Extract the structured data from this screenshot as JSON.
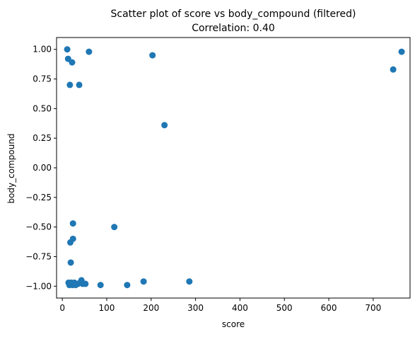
{
  "chart_data": {
    "type": "scatter",
    "title": "Scatter plot of score vs body_compound (filtered)",
    "subtitle": "Correlation: 0.40",
    "xlabel": "score",
    "ylabel": "body_compound",
    "xlim": [
      -13,
      783
    ],
    "ylim": [
      -1.1,
      1.1
    ],
    "xticks": [
      0,
      100,
      200,
      300,
      400,
      500,
      600,
      700
    ],
    "yticks": [
      -1.0,
      -0.75,
      -0.5,
      -0.25,
      0.0,
      0.25,
      0.5,
      0.75,
      1.0
    ],
    "xtick_labels": [
      "0",
      "100",
      "200",
      "300",
      "400",
      "500",
      "600",
      "700"
    ],
    "ytick_labels": [
      "−1.00",
      "−0.75",
      "−0.50",
      "−0.25",
      "0.00",
      "0.25",
      "0.50",
      "0.75",
      "1.00"
    ],
    "grid": false,
    "marker_color": "#1f77b4",
    "points": [
      {
        "x": 11,
        "y": 1.0
      },
      {
        "x": 13,
        "y": 0.92
      },
      {
        "x": 22,
        "y": 0.89
      },
      {
        "x": 17,
        "y": 0.7
      },
      {
        "x": 38,
        "y": 0.7
      },
      {
        "x": 60,
        "y": 0.98
      },
      {
        "x": 203,
        "y": 0.95
      },
      {
        "x": 230,
        "y": 0.36
      },
      {
        "x": 745,
        "y": 0.83
      },
      {
        "x": 764,
        "y": 0.98
      },
      {
        "x": 24,
        "y": -0.47
      },
      {
        "x": 117,
        "y": -0.5
      },
      {
        "x": 24,
        "y": -0.6
      },
      {
        "x": 18,
        "y": -0.63
      },
      {
        "x": 19,
        "y": -0.8
      },
      {
        "x": 14,
        "y": -0.97
      },
      {
        "x": 16,
        "y": -0.99
      },
      {
        "x": 20,
        "y": -0.97
      },
      {
        "x": 23,
        "y": -0.99
      },
      {
        "x": 27,
        "y": -0.97
      },
      {
        "x": 30,
        "y": -0.99
      },
      {
        "x": 35,
        "y": -0.98
      },
      {
        "x": 40,
        "y": -0.97
      },
      {
        "x": 43,
        "y": -0.95
      },
      {
        "x": 46,
        "y": -0.98
      },
      {
        "x": 52,
        "y": -0.98
      },
      {
        "x": 86,
        "y": -0.99
      },
      {
        "x": 146,
        "y": -0.99
      },
      {
        "x": 183,
        "y": -0.96
      },
      {
        "x": 286,
        "y": -0.96
      }
    ]
  }
}
